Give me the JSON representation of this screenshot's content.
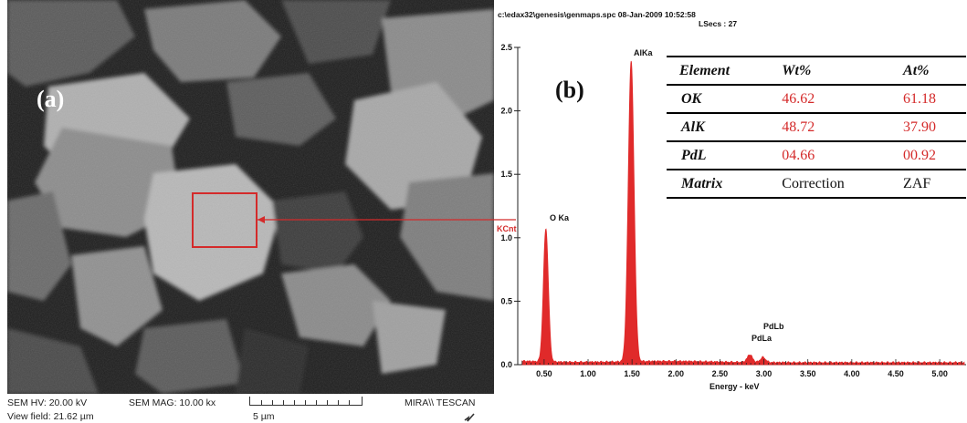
{
  "panel_a": {
    "label": "(a)",
    "footer": {
      "hv": "SEM HV: 20.00 kV",
      "mag": "SEM MAG: 10.00 kx",
      "view_field": "View field: 21.62 µm",
      "scale_bar": "5 µm",
      "brand": "MIRA\\\\ TESCAN"
    },
    "roi_color": "#d42a2a"
  },
  "panel_b": {
    "label": "(b)",
    "header_line1": "c:\\edax32\\genesis\\genmaps.spc  08-Jan-2009 10:52:58",
    "header_line2": "LSecs : 27",
    "ylabel": "KCnt",
    "xlabel": "Energy - keV",
    "peak_labels": {
      "o": "O Ka",
      "al": "AlKa",
      "pdla": "PdLa",
      "pdlb": "PdLb"
    },
    "table": {
      "headers": [
        "Element",
        "Wt%",
        "At%"
      ],
      "rows": [
        [
          "OK",
          "46.62",
          "61.18"
        ],
        [
          "AlK",
          "48.72",
          "37.90"
        ],
        [
          "PdL",
          "04.66",
          "00.92"
        ],
        [
          "Matrix",
          "Correction",
          "ZAF"
        ]
      ]
    }
  },
  "chart_data": {
    "type": "area",
    "xlabel": "Energy - keV",
    "ylabel": "KCnt",
    "xlim": [
      0.2,
      5.3
    ],
    "ylim": [
      0,
      2.5
    ],
    "xticks": [
      "0.50",
      "1.00",
      "1.50",
      "2.00",
      "2.50",
      "3.00",
      "3.50",
      "4.00",
      "4.50",
      "5.00"
    ],
    "yticks": [
      "0.0",
      "0.5",
      "1.0",
      "1.5",
      "2.0",
      "2.5"
    ],
    "peaks": [
      {
        "label": "O Ka",
        "x": 0.52,
        "y": 1.05
      },
      {
        "label": "AlKa",
        "x": 1.49,
        "y": 2.37
      },
      {
        "label": "PdLa",
        "x": 2.84,
        "y": 0.06
      },
      {
        "label": "PdLb",
        "x": 2.99,
        "y": 0.04
      }
    ],
    "color": "#e02a2a",
    "grid": false
  }
}
